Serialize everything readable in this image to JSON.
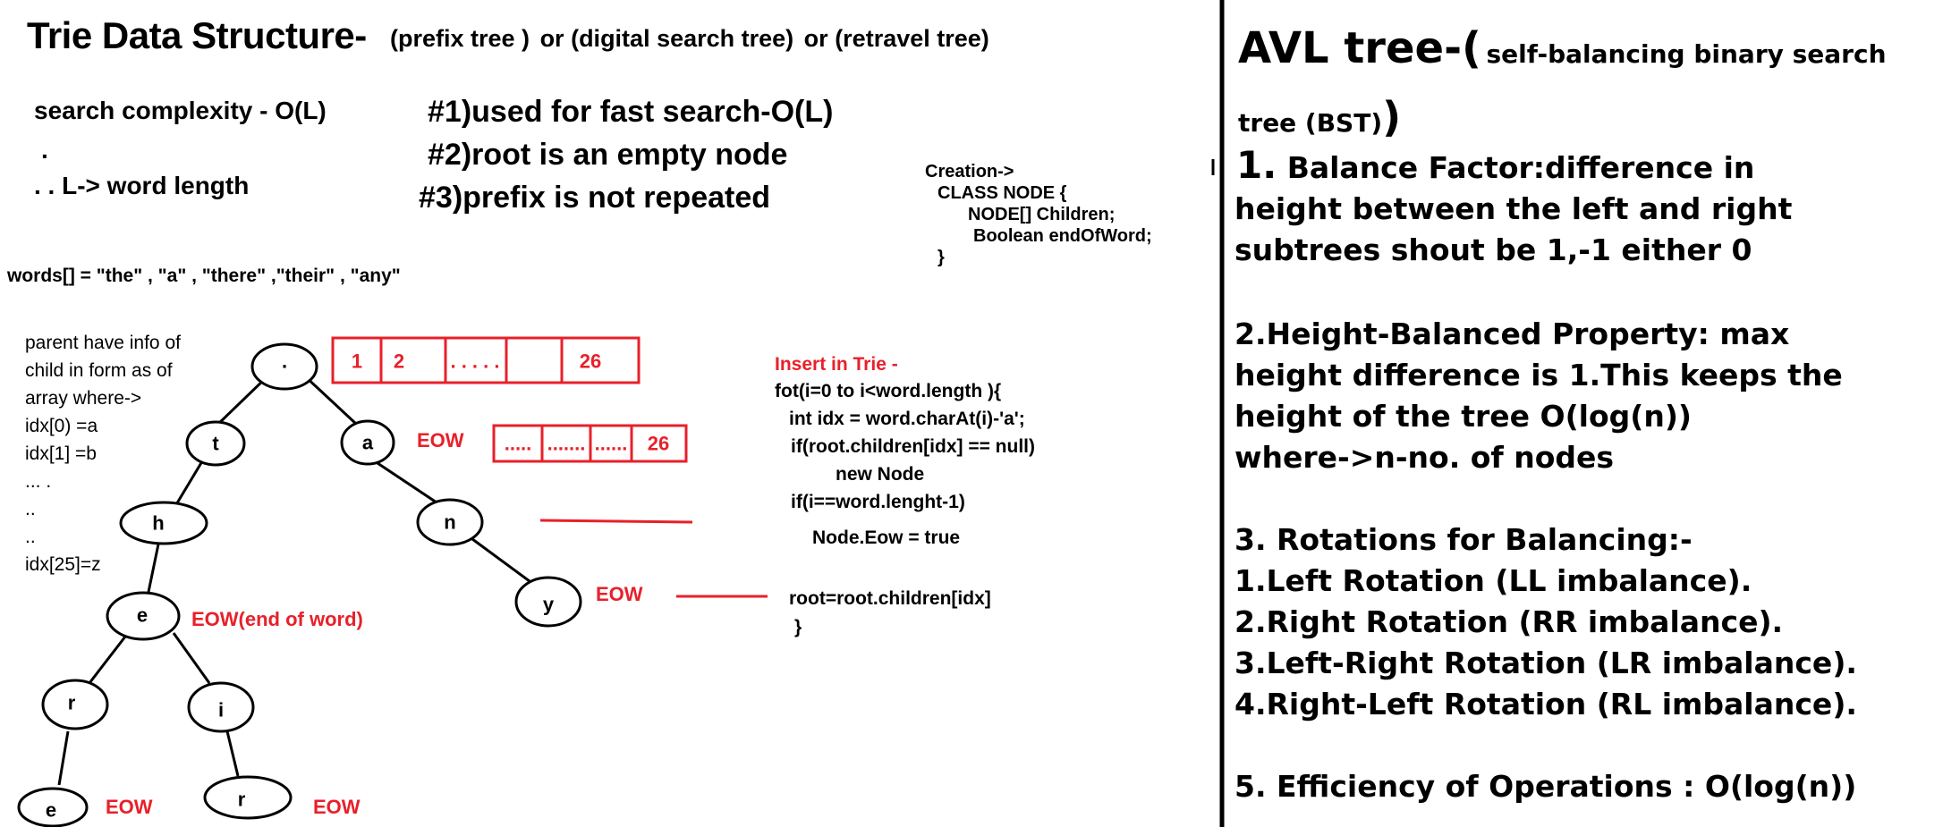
{
  "trie": {
    "title": "Trie Data Structure-",
    "subtitle": {
      "a": "(prefix tree )",
      "or1": "or",
      "b": "(digital search tree)",
      "or2": "or",
      "c": "(retravel tree)"
    },
    "search_complexity": "search complexity - O(L)",
    "dot1": ".",
    "l_word_length": ". . L-> word length",
    "points": [
      "#1)used for fast search-O(L)",
      "#2)root is an empty node",
      "#3)prefix is not repeated"
    ],
    "words": "words[] = \"the\" , \"a\" , \"there\" ,\"their\" ,  \"any\"",
    "parent_info": [
      "parent have info of",
      "child in form as of",
      "array where->",
      "idx[0) =a",
      "idx[1] =b",
      "... .",
      "..",
      "..",
      "idx[25]=z"
    ],
    "creation": [
      "Creation->",
      "CLASS NODE {",
      "NODE[] Children;",
      "Boolean endOfWord;",
      "}"
    ],
    "insert_title": "Insert in Trie -",
    "insert_code": [
      "fot(i=0 to i<word.length ){",
      "int idx = word.charAt(i)-'a';",
      "if(root.children[idx] == null)",
      "new Node",
      "if(i==word.lenght-1)",
      "Node.Eow = true",
      "root=root.children[idx]",
      "}"
    ],
    "tree_nodes": {
      "root": ".",
      "t": "t",
      "a": "a",
      "h": "h",
      "n": "n",
      "e1": "e",
      "y": "y",
      "r1": "r",
      "i": "i",
      "e2": "e",
      "r2": "r"
    },
    "eow_labels": {
      "a": "EOW",
      "y": "EOW",
      "e1": "EOW(end of word)",
      "e2": "EOW",
      "r2": "EOW"
    },
    "array1": [
      "1",
      "2",
      ". . . . .",
      "",
      "26"
    ],
    "array2": [
      ".....",
      ".......",
      "......",
      "26"
    ]
  },
  "avl": {
    "title_big": "AVL tree-(",
    "title_small": "self-balancing binary search",
    "title_line2": "tree (BST)",
    "title_paren": ")",
    "num1": "1.",
    "p1_line1": "Balance Factor:difference in",
    "p1_line2": "height between the left and right",
    "p1_line3": "subtrees shout be 1,-1 either 0",
    "p2": [
      "2.Height-Balanced Property: max",
      "height difference is 1.This keeps the",
      "height of the tree O(log(n))",
      "where->n-no. of nodes"
    ],
    "p3": [
      "3. Rotations for Balancing:-",
      "1.Left Rotation (LL imbalance).",
      "2.Right Rotation (RR imbalance).",
      "3.Left-Right Rotation (LR imbalance).",
      "4.Right-Left Rotation (RL imbalance)."
    ],
    "p5": "5. Efficiency of Operations : O(log(n))"
  },
  "colors": {
    "accent_red": "#e8202a",
    "ink": "#000000"
  }
}
